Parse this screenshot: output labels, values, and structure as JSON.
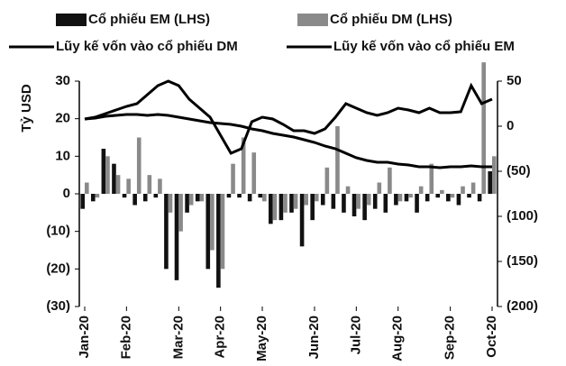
{
  "chart_data": {
    "type": "bar_line",
    "y_axis_label": "Tỷ USD",
    "categories": [
      "Jan-20",
      null,
      null,
      null,
      "Feb-20",
      null,
      null,
      null,
      null,
      "Mar-20",
      null,
      null,
      null,
      "Apr-20",
      null,
      null,
      null,
      "May-20",
      null,
      null,
      null,
      null,
      "Jun-20",
      null,
      null,
      null,
      "Jul-20",
      null,
      null,
      null,
      "Aug-20",
      null,
      null,
      null,
      null,
      "Sep-20",
      null,
      null,
      null,
      "Oct-20"
    ],
    "series": [
      {
        "name": "Cổ phiếu EM (LHS)",
        "kind": "bar",
        "color": "#111111",
        "values": [
          -4,
          -2,
          12,
          8,
          -1,
          -3,
          -2,
          -1,
          -20,
          -23,
          -5,
          -2,
          -20,
          -25,
          -1,
          -1,
          -2,
          -1,
          -8,
          -7,
          -5,
          -14,
          -7,
          -3,
          -4,
          -5,
          -6,
          -7,
          -4,
          -5,
          -3,
          -2,
          -5,
          -2,
          -1,
          -2,
          -3,
          -1,
          -2,
          6
        ]
      },
      {
        "name": "Cổ phiếu DM (LHS)",
        "kind": "bar",
        "color": "#8a8a8a",
        "values": [
          3,
          -1,
          10,
          5,
          4,
          15,
          5,
          4,
          -5,
          -10,
          -3,
          -2,
          -15,
          -20,
          8,
          15,
          11,
          -2,
          -7,
          -5,
          -4,
          -3,
          -2,
          7,
          18,
          2,
          -4,
          -3,
          3,
          7,
          -2,
          -1,
          2,
          8,
          1,
          -1,
          2,
          3,
          35,
          10
        ]
      },
      {
        "name": "Lũy kế vốn vào cổ phiếu DM",
        "kind": "line",
        "axis": "y2",
        "color": "#000000",
        "values": [
          8,
          10,
          14,
          18,
          22,
          25,
          35,
          45,
          50,
          45,
          30,
          20,
          10,
          -10,
          -30,
          -25,
          5,
          10,
          8,
          2,
          -5,
          -5,
          -8,
          -3,
          10,
          25,
          20,
          15,
          12,
          15,
          20,
          18,
          15,
          20,
          15,
          15,
          16,
          45,
          25,
          30
        ]
      },
      {
        "name": "Lũy kế vốn vào cổ phiếu EM",
        "kind": "line",
        "axis": "y2",
        "color": "#000000",
        "values": [
          8,
          9,
          11,
          12,
          13,
          13,
          12,
          13,
          12,
          10,
          8,
          6,
          4,
          3,
          2,
          0,
          -3,
          -5,
          -8,
          -10,
          -12,
          -15,
          -18,
          -22,
          -25,
          -30,
          -35,
          -38,
          -40,
          -40,
          -42,
          -43,
          -45,
          -45,
          -46,
          -45,
          -45,
          -44,
          -45,
          -45
        ]
      }
    ],
    "ylim": [
      -30,
      30
    ],
    "yticks": [
      {
        "value": -30,
        "label": "(30)"
      },
      {
        "value": -20,
        "label": "(20)"
      },
      {
        "value": -10,
        "label": "(10)"
      },
      0,
      10,
      20,
      30
    ],
    "y2lim": [
      -200,
      50
    ],
    "y2ticks": [
      {
        "value": -200,
        "label": "(200)"
      },
      {
        "value": -150,
        "label": "(150)"
      },
      {
        "value": -100,
        "label": "(100)"
      },
      {
        "value": -50,
        "label": "(50)"
      },
      0,
      50
    ]
  }
}
